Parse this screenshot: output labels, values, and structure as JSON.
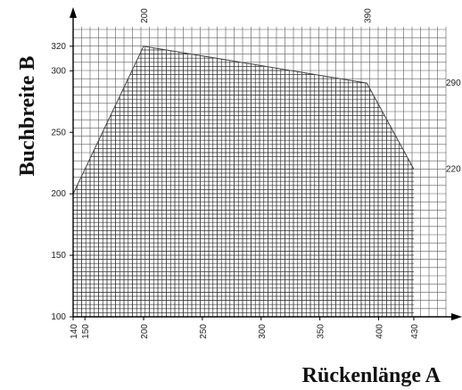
{
  "chart_data": {
    "type": "area",
    "xlabel": "Rückenlänge A",
    "ylabel": "Buchbreite B",
    "xlim": [
      140,
      430
    ],
    "ylim": [
      100,
      330
    ],
    "x_ticks": [
      140,
      150,
      200,
      250,
      300,
      350,
      400,
      430
    ],
    "x_top_ticks": [
      200,
      390
    ],
    "y_ticks": [
      100,
      150,
      200,
      250,
      300,
      320
    ],
    "y_right_ticks": [
      220,
      290
    ],
    "grid": true,
    "series": [
      {
        "points": [
          {
            "x": 140,
            "y": 200
          },
          {
            "x": 200,
            "y": 320
          },
          {
            "x": 390,
            "y": 290
          },
          {
            "x": 430,
            "y": 220
          },
          {
            "x": 430,
            "y": 100
          },
          {
            "x": 140,
            "y": 100
          }
        ]
      }
    ],
    "colors": {
      "grid": "#5a5a5a",
      "outline": "#444444",
      "axis": "#000000",
      "text": "#222222"
    }
  }
}
